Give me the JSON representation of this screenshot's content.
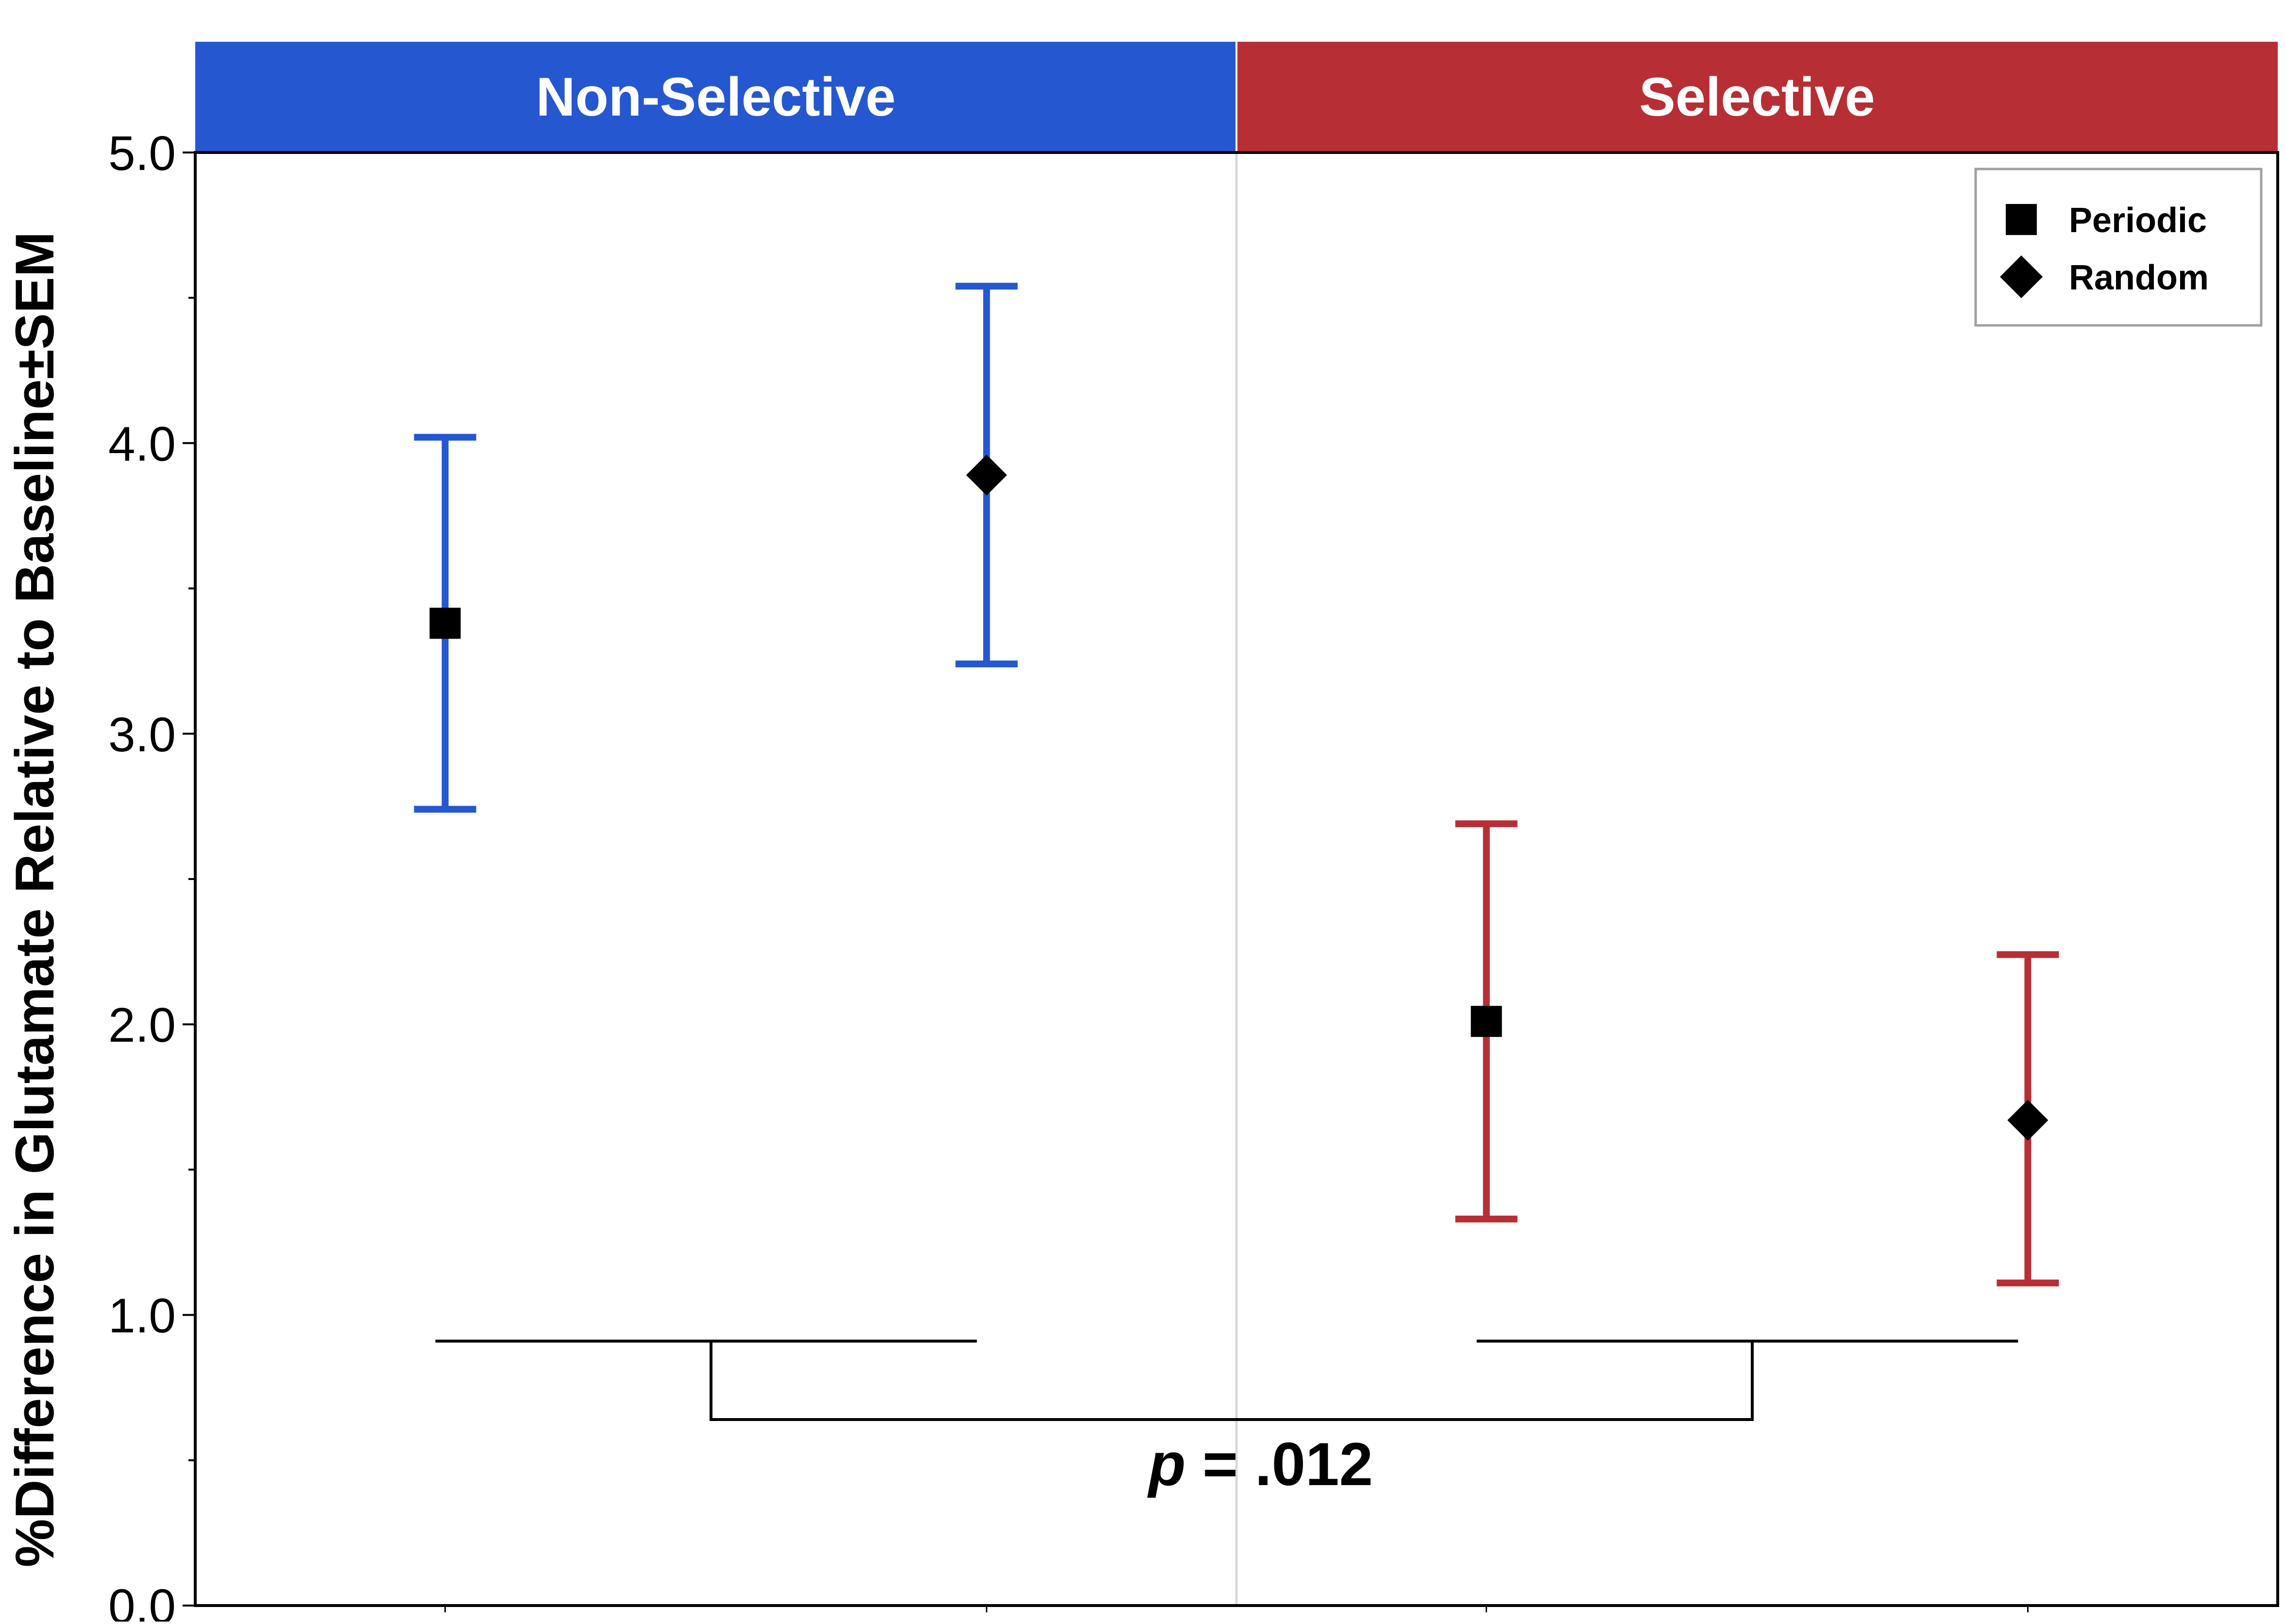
{
  "chart_data": {
    "type": "scatter",
    "title": "",
    "xlabel": "",
    "ylabel": "%Difference in Glutamate Relative to Baseline±SEM",
    "ylim": [
      0,
      5
    ],
    "y_ticks": [
      "0.0",
      "1.0",
      "2.0",
      "3.0",
      "4.0",
      "5.0"
    ],
    "y_minor_step": 0.5,
    "grid": false,
    "panels": [
      {
        "label": "Non-Selective",
        "color": "#2557d0"
      },
      {
        "label": "Selective",
        "color": "#b82e35"
      }
    ],
    "series": [
      {
        "name": "Periodic",
        "marker": "square",
        "points": [
          {
            "panel": 0,
            "mean": 3.38,
            "lower": 2.74,
            "upper": 4.02
          },
          {
            "panel": 1,
            "mean": 2.01,
            "lower": 1.33,
            "upper": 2.69
          }
        ]
      },
      {
        "name": "Random",
        "marker": "diamond",
        "points": [
          {
            "panel": 0,
            "mean": 3.89,
            "lower": 3.24,
            "upper": 4.54
          },
          {
            "panel": 1,
            "mean": 1.67,
            "lower": 1.11,
            "upper": 2.24
          }
        ]
      }
    ],
    "legend": {
      "placement": "top-right",
      "entries": [
        "Periodic",
        "Random"
      ]
    },
    "annotation": {
      "text_italic": "p",
      "text_rest": " = .012",
      "bracket_y": 0.91,
      "connector_y": 0.64
    },
    "colors": {
      "marker": "#000000",
      "divider": "#d8d8d8",
      "legend_border": "#a0a0a0"
    }
  }
}
